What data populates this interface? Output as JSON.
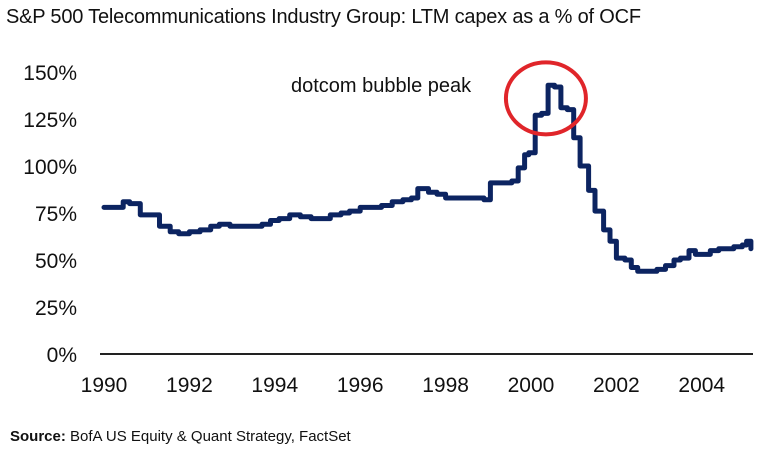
{
  "chart_data": {
    "type": "line",
    "subtitle": "S&P 500 Telecommunications Industry Group: LTM capex as a % of OCF",
    "xlabel": "",
    "ylabel": "",
    "xlim": [
      1990,
      2005.2
    ],
    "ylim": [
      0,
      150
    ],
    "x_ticks": [
      1990,
      1992,
      1994,
      1996,
      1998,
      2000,
      2002,
      2004
    ],
    "x_tick_labels": [
      "1990",
      "1992",
      "1994",
      "1996",
      "1998",
      "2000",
      "2002",
      "2004"
    ],
    "y_ticks": [
      0,
      25,
      50,
      75,
      100,
      125,
      150
    ],
    "y_tick_labels": [
      "0%",
      "25%",
      "50%",
      "75%",
      "100%",
      "125%",
      "150%"
    ],
    "grid": false,
    "line_color": "#0c2461",
    "annotation": {
      "text": "dotcom bubble peak",
      "circle_center": [
        2000.35,
        136
      ],
      "circle_color": "#e0252a"
    },
    "series": [
      {
        "x": [
          1990.0,
          1990.25,
          1990.45,
          1990.6,
          1990.85,
          1991.05,
          1991.3,
          1991.55,
          1991.75,
          1992.0,
          1992.25,
          1992.5,
          1992.7,
          1992.95,
          1993.2,
          1993.45,
          1993.7,
          1993.9,
          1994.1,
          1994.35,
          1994.6,
          1994.85,
          1995.05,
          1995.3,
          1995.55,
          1995.75,
          1996.0,
          1996.25,
          1996.5,
          1996.75,
          1997.0,
          1997.2,
          1997.35,
          1997.6,
          1997.8,
          1998.0,
          1998.2,
          1998.45,
          1998.7,
          1998.9,
          1999.05,
          1999.3,
          1999.55,
          1999.7,
          1999.85,
          1999.95,
          2000.1,
          2000.25,
          2000.4,
          2000.55,
          2000.7,
          2000.85,
          2001.0,
          2001.15,
          2001.35,
          2001.5,
          2001.7,
          2001.85,
          2002.0,
          2002.2,
          2002.35,
          2002.5,
          2002.75,
          2002.95,
          2003.15,
          2003.35,
          2003.5,
          2003.7,
          2003.85,
          2004.0,
          2004.2,
          2004.4,
          2004.55,
          2004.75,
          2004.95,
          2005.05,
          2005.15
        ],
        "values": [
          78,
          78,
          81,
          80,
          74,
          74,
          68,
          65,
          64,
          65,
          66,
          68,
          69,
          68,
          68,
          68,
          69,
          71,
          72,
          74,
          73,
          72,
          72,
          74,
          75,
          76,
          78,
          78,
          79,
          81,
          82,
          83,
          88,
          86,
          85,
          83,
          83,
          83,
          83,
          82,
          91,
          91,
          92,
          99,
          106,
          107,
          127,
          128,
          143,
          142,
          131,
          130,
          115,
          100,
          87,
          76,
          66,
          60,
          51,
          50,
          46,
          44,
          44,
          45,
          47,
          50,
          51,
          55,
          53,
          53,
          55,
          56,
          56,
          57,
          58,
          60,
          56
        ]
      }
    ]
  },
  "source": {
    "label": "Source:",
    "text": "BofA US Equity & Quant Strategy, FactSet"
  }
}
